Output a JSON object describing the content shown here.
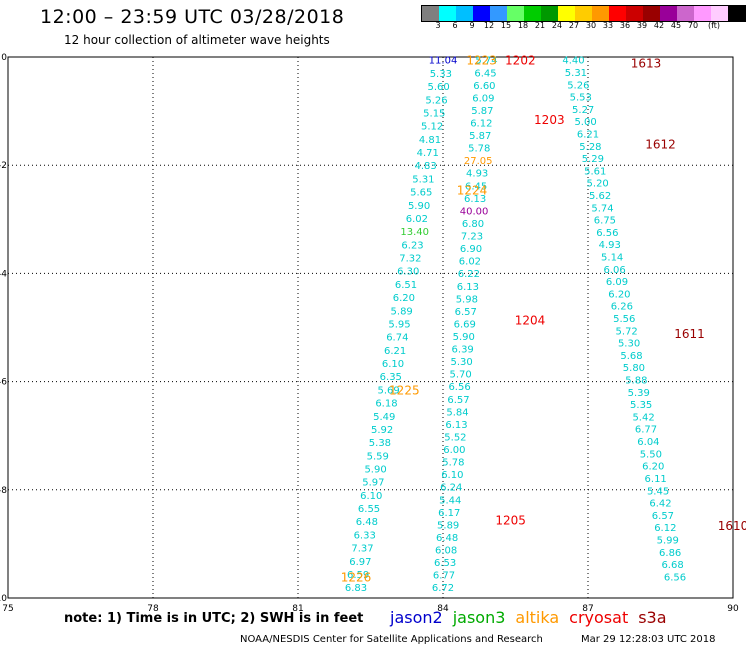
{
  "header": {
    "title": "12:00 – 23:59 UTC 03/28/2018",
    "subtitle": "12 hour collection of altimeter wave heights"
  },
  "colorbar": {
    "colors": [
      "#7f7f7f",
      "#00ffff",
      "#00bfff",
      "#0000ff",
      "#3399ff",
      "#66ff66",
      "#00cc00",
      "#009900",
      "#ffff00",
      "#ffcc00",
      "#ff9900",
      "#ff0000",
      "#cc0000",
      "#990000",
      "#990099",
      "#cc66cc",
      "#ff99ff",
      "#ffccff",
      "#000000"
    ],
    "ticks": [
      "3",
      "6",
      "9",
      "12",
      "15",
      "18",
      "21",
      "24",
      "27",
      "30",
      "33",
      "36",
      "39",
      "42",
      "45",
      "70",
      "(ft)"
    ]
  },
  "footer": {
    "note": "note: 1) Time is in UTC; 2) SWH is in feet",
    "legend": [
      {
        "name": "jason2",
        "color": "#0000cc"
      },
      {
        "name": "jason3",
        "color": "#00aa00"
      },
      {
        "name": "altika",
        "color": "#ff9900"
      },
      {
        "name": "cryosat",
        "color": "#ee0000"
      },
      {
        "name": "s3a",
        "color": "#990000"
      }
    ],
    "credit": "NOAA/NESDIS Center for Satellite Applications and Research",
    "timestamp": "Mar 29 12:28:03 UTC 2018"
  },
  "chart_data": {
    "type": "scatter",
    "xlim": [
      75,
      90
    ],
    "ylim": [
      -10,
      0
    ],
    "x_ticks": [
      "75",
      "78",
      "81",
      "84",
      "87",
      "90"
    ],
    "y_ticks": [
      "0",
      "-2",
      "-4",
      "-6",
      "-8",
      "-10"
    ],
    "grid": true,
    "track_a": {
      "color": "#00cccc",
      "start": [
        84.0,
        -0.05
      ],
      "end": [
        82.2,
        -9.8
      ],
      "values": [
        "11.04",
        "5.33",
        "5.60",
        "5.26",
        "5.15",
        "5.12",
        "4.81",
        "4.71",
        "4.83",
        "5.31",
        "5.65",
        "5.90",
        "6.02",
        "13.40",
        "6.23",
        "7.32",
        "6.30",
        "6.51",
        "6.20",
        "5.89",
        "5.95",
        "6.74",
        "6.21",
        "6.10",
        "6.35",
        "5.69",
        "6.18",
        "5.49",
        "5.92",
        "5.38",
        "5.59",
        "5.90",
        "5.97",
        "6.10",
        "6.55",
        "6.48",
        "6.33",
        "7.37",
        "6.97",
        "6.59",
        "6.83"
      ],
      "special_colors": {
        "0": "#0000cc",
        "13": "#33cc33"
      }
    },
    "track_b": {
      "color": "#00cccc",
      "start": [
        84.9,
        -0.05
      ],
      "end": [
        84.0,
        -9.8
      ],
      "values": [
        "5.74",
        "6.45",
        "6.60",
        "6.09",
        "5.87",
        "6.12",
        "5.87",
        "5.78",
        "27.05",
        "4.93",
        "6.45",
        "6.13",
        "40.00",
        "6.80",
        "7.23",
        "6.90",
        "6.02",
        "6.22",
        "6.13",
        "5.98",
        "6.57",
        "6.69",
        "5.90",
        "6.39",
        "5.30",
        "5.70",
        "6.56",
        "6.57",
        "5.84",
        "6.13",
        "5.52",
        "6.00",
        "5.78",
        "6.10",
        "6.24",
        "5.44",
        "6.17",
        "5.89",
        "6.48",
        "6.08",
        "6.53",
        "6.77",
        "6.72"
      ],
      "special_colors": {
        "8": "#ff9900",
        "12": "#990099"
      }
    },
    "track_c": {
      "color": "#00cccc",
      "start": [
        86.7,
        -0.05
      ],
      "end": [
        88.8,
        -9.6
      ],
      "values": [
        "4.40",
        "5.31",
        "5.26",
        "5.53",
        "5.27",
        "5.00",
        "6.21",
        "5.28",
        "5.29",
        "5.61",
        "5.20",
        "5.62",
        "5.74",
        "6.75",
        "6.56",
        "4.93",
        "5.14",
        "6.06",
        "6.09",
        "6.20",
        "6.26",
        "5.56",
        "5.72",
        "5.30",
        "5.68",
        "5.80",
        "5.88",
        "5.39",
        "5.35",
        "5.42",
        "6.77",
        "6.04",
        "5.50",
        "6.20",
        "6.11",
        "5.45",
        "6.42",
        "6.57",
        "6.12",
        "5.99",
        "6.86",
        "6.68",
        "6.56"
      ]
    },
    "time_labels": [
      {
        "text": "1223",
        "x": 84.8,
        "y": -0.05,
        "color": "#ff9900"
      },
      {
        "text": "1202",
        "x": 85.6,
        "y": -0.05,
        "color": "#ee0000"
      },
      {
        "text": "1203",
        "x": 86.2,
        "y": -1.15,
        "color": "#ee0000"
      },
      {
        "text": "1224",
        "x": 84.6,
        "y": -2.45,
        "color": "#ff9900"
      },
      {
        "text": "1204",
        "x": 85.8,
        "y": -4.85,
        "color": "#ee0000"
      },
      {
        "text": "1225",
        "x": 83.2,
        "y": -6.15,
        "color": "#ff9900"
      },
      {
        "text": "1205",
        "x": 85.4,
        "y": -8.55,
        "color": "#ee0000"
      },
      {
        "text": "1226",
        "x": 82.2,
        "y": -9.6,
        "color": "#ff9900"
      },
      {
        "text": "1613",
        "x": 88.2,
        "y": -0.1,
        "color": "#990000"
      },
      {
        "text": "1612",
        "x": 88.5,
        "y": -1.6,
        "color": "#990000"
      },
      {
        "text": "1611",
        "x": 89.1,
        "y": -5.1,
        "color": "#990000"
      },
      {
        "text": "1610",
        "x": 90.0,
        "y": -8.65,
        "color": "#990000"
      }
    ]
  }
}
